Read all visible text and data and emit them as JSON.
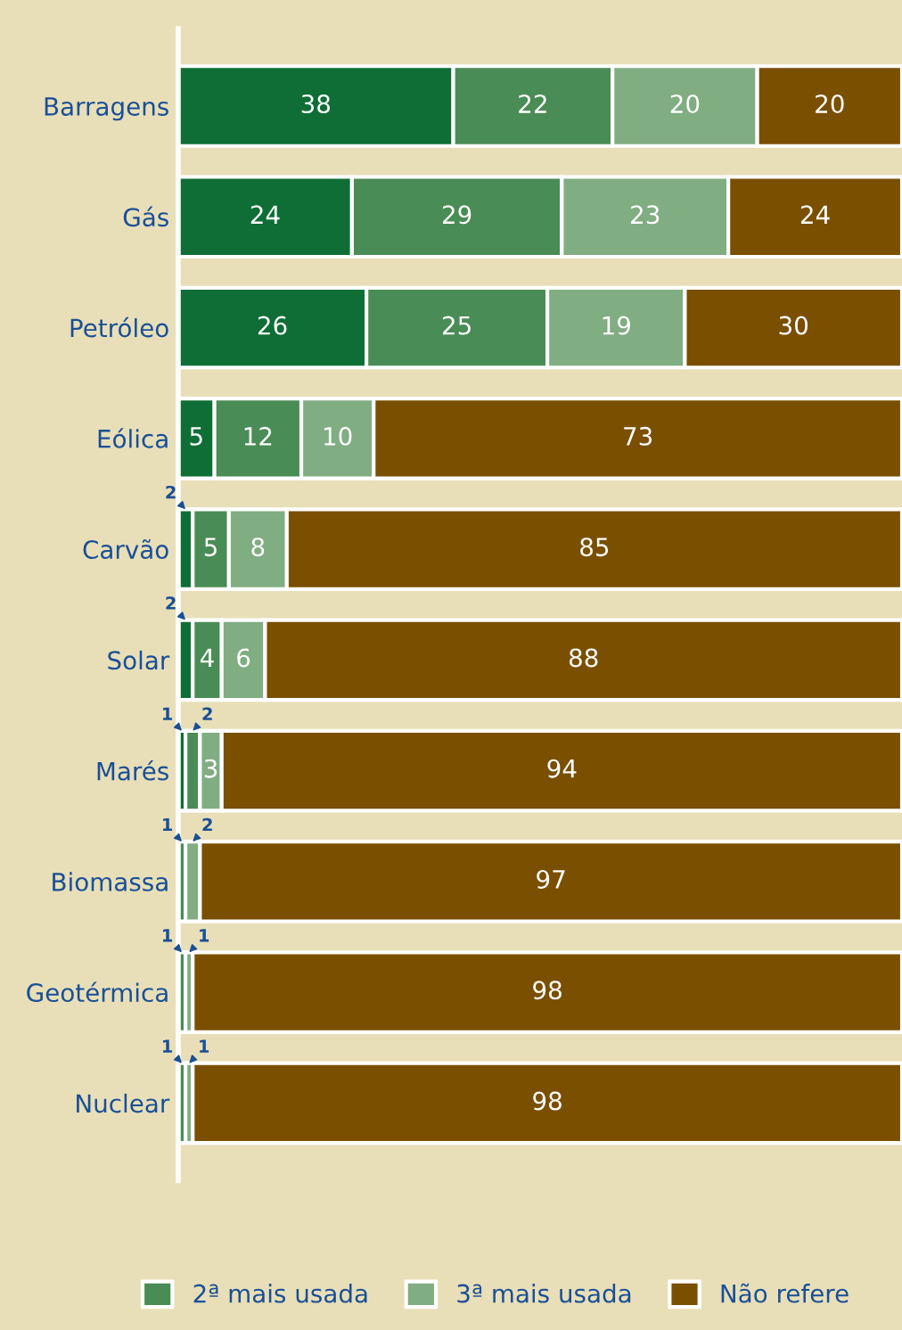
{
  "chart_data": {
    "type": "bar",
    "orientation": "horizontal",
    "stacked": true,
    "categories": [
      "Barragens",
      "Gás",
      "Petróleo",
      "Eólica",
      "Carvão",
      "Solar",
      "Marés",
      "Biomassa",
      "Geotérmica",
      "Nuclear"
    ],
    "xlim": [
      0,
      100
    ],
    "tick_labels": "y",
    "grid": false,
    "legend": "bottom",
    "series": [
      {
        "color": "#0f6e35",
        "values": [
          38,
          24,
          26,
          5,
          2,
          2,
          1,
          0,
          0,
          0
        ],
        "value_labels": [
          "38",
          "24",
          "26",
          "5",
          "2",
          "2",
          "1",
          null,
          null,
          null
        ]
      },
      {
        "name": "2ª mais usada",
        "color": "#4a8c55",
        "values": [
          22,
          29,
          25,
          12,
          5,
          4,
          2,
          1,
          1,
          1
        ],
        "value_labels": [
          "22",
          "29",
          "25",
          "12",
          "5",
          "4",
          "2",
          "1",
          "1",
          "1"
        ]
      },
      {
        "name": "3ª mais usada",
        "color": "#80ad82",
        "values": [
          20,
          23,
          19,
          10,
          8,
          6,
          3,
          2,
          1,
          1
        ],
        "value_labels": [
          "20",
          "23",
          "19",
          "10",
          "8",
          "6",
          "3",
          "2",
          "1",
          "1"
        ]
      },
      {
        "name": "Não refere",
        "color": "#7a4f00",
        "values": [
          20,
          24,
          30,
          73,
          85,
          88,
          94,
          97,
          98,
          98
        ],
        "value_labels": [
          "20",
          "24",
          "30",
          "73",
          "85",
          "88",
          "94",
          "97",
          "98",
          "98"
        ]
      }
    ]
  }
}
